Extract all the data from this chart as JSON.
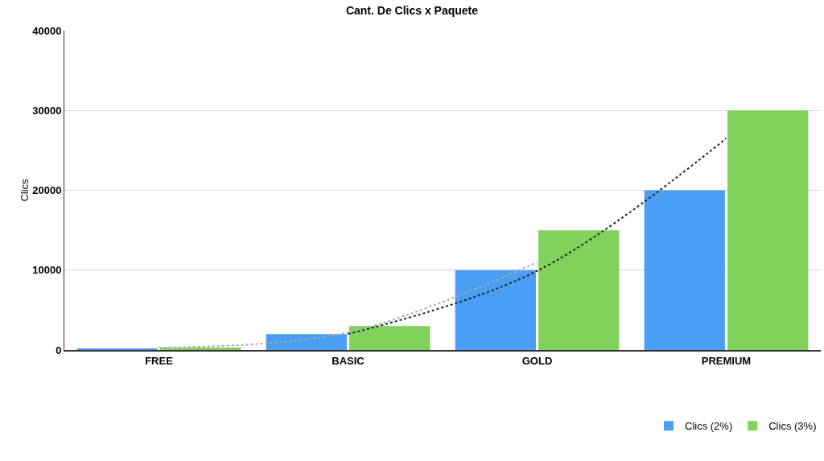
{
  "chart_data": {
    "type": "bar",
    "title": "Cant. De Clics x Paquete",
    "ylabel": "Clics",
    "categories": [
      "FREE",
      "BASIC",
      "GOLD",
      "PREMIUM"
    ],
    "series": [
      {
        "name": "Clics (2%)",
        "color": "#4a9ff5",
        "values": [
          200,
          2000,
          10000,
          20000
        ]
      },
      {
        "name": "Clics (3%)",
        "color": "#80d25b",
        "values": [
          300,
          3000,
          15000,
          30000
        ]
      },
      {
        "type": "line",
        "color": "#aaaaaa",
        "line_style": "dotted",
        "marker": "none",
        "values": [
          300,
          2200,
          11000,
          null
        ]
      },
      {
        "type": "line",
        "color": "#222222",
        "line_style": "dotted",
        "marker": "none",
        "values": [
          null,
          2000,
          9900,
          26500
        ]
      }
    ],
    "ylim": [
      0,
      40000
    ],
    "yticks": [
      0,
      10000,
      20000,
      30000,
      40000
    ],
    "grid": "y",
    "legend": "bottom right"
  }
}
